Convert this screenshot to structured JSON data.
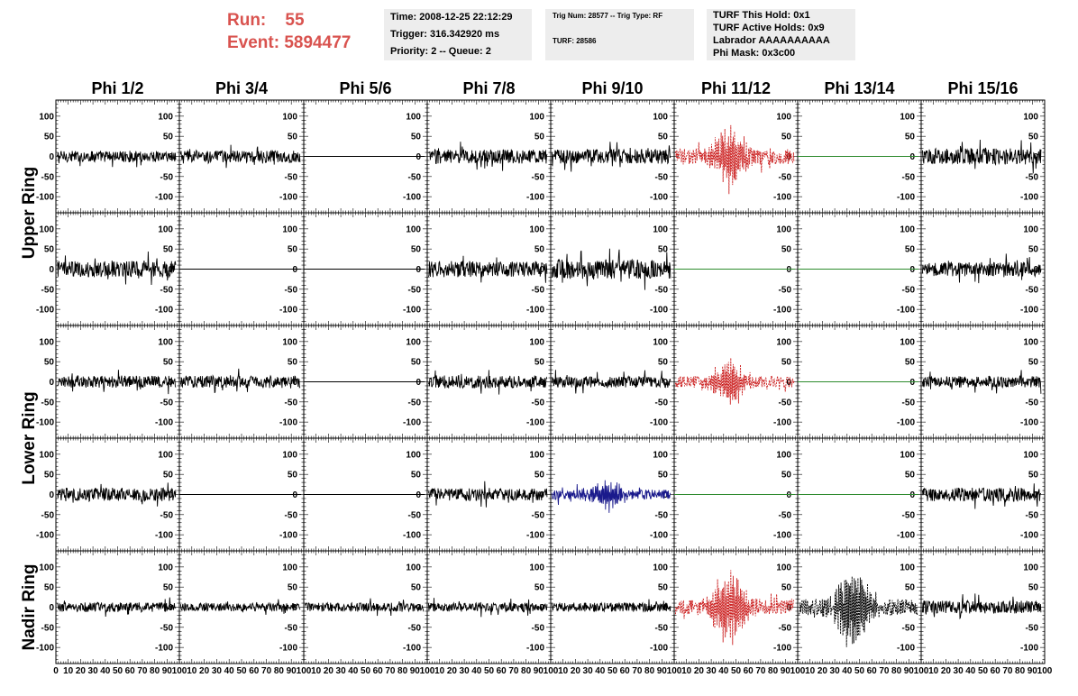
{
  "header": {
    "run_label": "Run:",
    "run_value": "55",
    "event_label": "Event:",
    "event_value": "5894477"
  },
  "info_box_1": {
    "time": "Time: 2008-12-25 22:12:29",
    "trigger": "Trigger: 316.342920 ms",
    "priority": "Priority: 2 -- Queue: 2"
  },
  "info_box_2": {
    "trig": "Trig Num: 28577 -- Trig Type: RF",
    "turf": "TURF: 28586"
  },
  "info_box_3": {
    "this_hold": "TURF This Hold: 0x1",
    "active_holds": "TURF Active Holds: 0x9",
    "labrador": "Labrador AAAAAAAAAA",
    "phi_mask": "Phi Mask: 0x3c00"
  },
  "colors": {
    "run_text": "#d9534f",
    "box_bg": "#ededed",
    "trace_default": "#000000",
    "trace_triggered": "#cc2222",
    "trace_masked": "#2e8b2e",
    "trace_blue": "#1a1a8c"
  },
  "chart_data": {
    "type": "line",
    "columns": [
      "Phi 1/2",
      "Phi 3/4",
      "Phi 5/6",
      "Phi 7/8",
      "Phi 9/10",
      "Phi 11/12",
      "Phi 13/14",
      "Phi 15/16"
    ],
    "rows": [
      "Upper Ring",
      "Upper Ring",
      "Lower Ring",
      "Lower Ring",
      "Nadir Ring"
    ],
    "row_labels": [
      {
        "text": "Upper Ring",
        "spans_rows": [
          0,
          1
        ]
      },
      {
        "text": "Lower Ring",
        "spans_rows": [
          2,
          3
        ]
      },
      {
        "text": "Nadir Ring",
        "spans_rows": [
          4
        ]
      }
    ],
    "xlim": [
      0,
      100
    ],
    "ylim": [
      -140,
      140
    ],
    "y_ticks": [
      -100,
      -50,
      0,
      50,
      100
    ],
    "x_ticks": [
      0,
      10,
      20,
      30,
      40,
      50,
      60,
      70,
      80,
      90,
      100
    ],
    "x_tick_labels": [
      "0",
      "10",
      "20",
      "30",
      "40",
      "50",
      "60",
      "70",
      "80",
      "90",
      "100"
    ],
    "x_tick_labels_last": [
      "0",
      "10",
      "20",
      "30",
      "40",
      "50",
      "60",
      "70",
      "80",
      "90",
      "100"
    ],
    "y_tick_labels": [
      "100",
      "50",
      "0",
      "-50",
      "-100"
    ],
    "grid": false,
    "panels": [
      {
        "row": 0,
        "col": 0,
        "style": "noise",
        "color": "trace_default",
        "amp": 14,
        "peak": 0
      },
      {
        "row": 0,
        "col": 1,
        "style": "noise",
        "color": "trace_default",
        "amp": 15,
        "peak": 0
      },
      {
        "row": 0,
        "col": 2,
        "style": "flat",
        "color": "trace_default"
      },
      {
        "row": 0,
        "col": 3,
        "style": "noise",
        "color": "trace_default",
        "amp": 18,
        "peak": 0
      },
      {
        "row": 0,
        "col": 4,
        "style": "noise",
        "color": "trace_default",
        "amp": 18,
        "peak": 0
      },
      {
        "row": 0,
        "col": 5,
        "style": "pulse",
        "color": "trace_triggered",
        "amp": 20,
        "peak": 80
      },
      {
        "row": 0,
        "col": 6,
        "style": "flat",
        "color": "trace_masked"
      },
      {
        "row": 0,
        "col": 7,
        "style": "noise",
        "color": "trace_default",
        "amp": 20,
        "peak": 0
      },
      {
        "row": 1,
        "col": 0,
        "style": "noise",
        "color": "trace_default",
        "amp": 20,
        "peak": 0
      },
      {
        "row": 1,
        "col": 1,
        "style": "flat",
        "color": "trace_default"
      },
      {
        "row": 1,
        "col": 2,
        "style": "flat",
        "color": "trace_default"
      },
      {
        "row": 1,
        "col": 3,
        "style": "noise",
        "color": "trace_default",
        "amp": 20,
        "peak": 0
      },
      {
        "row": 1,
        "col": 4,
        "style": "noise",
        "color": "trace_default",
        "amp": 24,
        "peak": 0
      },
      {
        "row": 1,
        "col": 5,
        "style": "flat",
        "color": "trace_masked"
      },
      {
        "row": 1,
        "col": 6,
        "style": "flat",
        "color": "trace_masked"
      },
      {
        "row": 1,
        "col": 7,
        "style": "noise",
        "color": "trace_default",
        "amp": 18,
        "peak": 0
      },
      {
        "row": 2,
        "col": 0,
        "style": "noise",
        "color": "trace_default",
        "amp": 15,
        "peak": 0
      },
      {
        "row": 2,
        "col": 1,
        "style": "noise",
        "color": "trace_default",
        "amp": 15,
        "peak": 0
      },
      {
        "row": 2,
        "col": 2,
        "style": "flat",
        "color": "trace_default"
      },
      {
        "row": 2,
        "col": 3,
        "style": "noise",
        "color": "trace_default",
        "amp": 16,
        "peak": 0
      },
      {
        "row": 2,
        "col": 4,
        "style": "noise",
        "color": "trace_default",
        "amp": 14,
        "peak": 0
      },
      {
        "row": 2,
        "col": 5,
        "style": "pulse",
        "color": "trace_triggered",
        "amp": 14,
        "peak": 60
      },
      {
        "row": 2,
        "col": 6,
        "style": "flat",
        "color": "trace_masked"
      },
      {
        "row": 2,
        "col": 7,
        "style": "noise",
        "color": "trace_default",
        "amp": 14,
        "peak": 0
      },
      {
        "row": 3,
        "col": 0,
        "style": "noise",
        "color": "trace_default",
        "amp": 17,
        "peak": 0
      },
      {
        "row": 3,
        "col": 1,
        "style": "flat",
        "color": "trace_default"
      },
      {
        "row": 3,
        "col": 2,
        "style": "flat",
        "color": "trace_default"
      },
      {
        "row": 3,
        "col": 3,
        "style": "noise",
        "color": "trace_default",
        "amp": 15,
        "peak": 0
      },
      {
        "row": 3,
        "col": 4,
        "style": "pulse",
        "color": "trace_blue",
        "amp": 12,
        "peak": 35
      },
      {
        "row": 3,
        "col": 5,
        "style": "flat",
        "color": "trace_masked"
      },
      {
        "row": 3,
        "col": 6,
        "style": "flat",
        "color": "trace_masked"
      },
      {
        "row": 3,
        "col": 7,
        "style": "noise",
        "color": "trace_default",
        "amp": 17,
        "peak": 0
      },
      {
        "row": 4,
        "col": 0,
        "style": "noise",
        "color": "trace_default",
        "amp": 12,
        "peak": 0
      },
      {
        "row": 4,
        "col": 1,
        "style": "noise",
        "color": "trace_default",
        "amp": 10,
        "peak": 0
      },
      {
        "row": 4,
        "col": 2,
        "style": "noise",
        "color": "trace_default",
        "amp": 11,
        "peak": 0
      },
      {
        "row": 4,
        "col": 3,
        "style": "noise",
        "color": "trace_default",
        "amp": 11,
        "peak": 0
      },
      {
        "row": 4,
        "col": 4,
        "style": "noise",
        "color": "trace_default",
        "amp": 11,
        "peak": 0
      },
      {
        "row": 4,
        "col": 5,
        "style": "pulse",
        "color": "trace_triggered",
        "amp": 18,
        "peak": 95
      },
      {
        "row": 4,
        "col": 6,
        "style": "pulse",
        "color": "trace_default",
        "amp": 20,
        "peak": 110
      },
      {
        "row": 4,
        "col": 7,
        "style": "noise",
        "color": "trace_default",
        "amp": 16,
        "peak": 0
      }
    ]
  }
}
